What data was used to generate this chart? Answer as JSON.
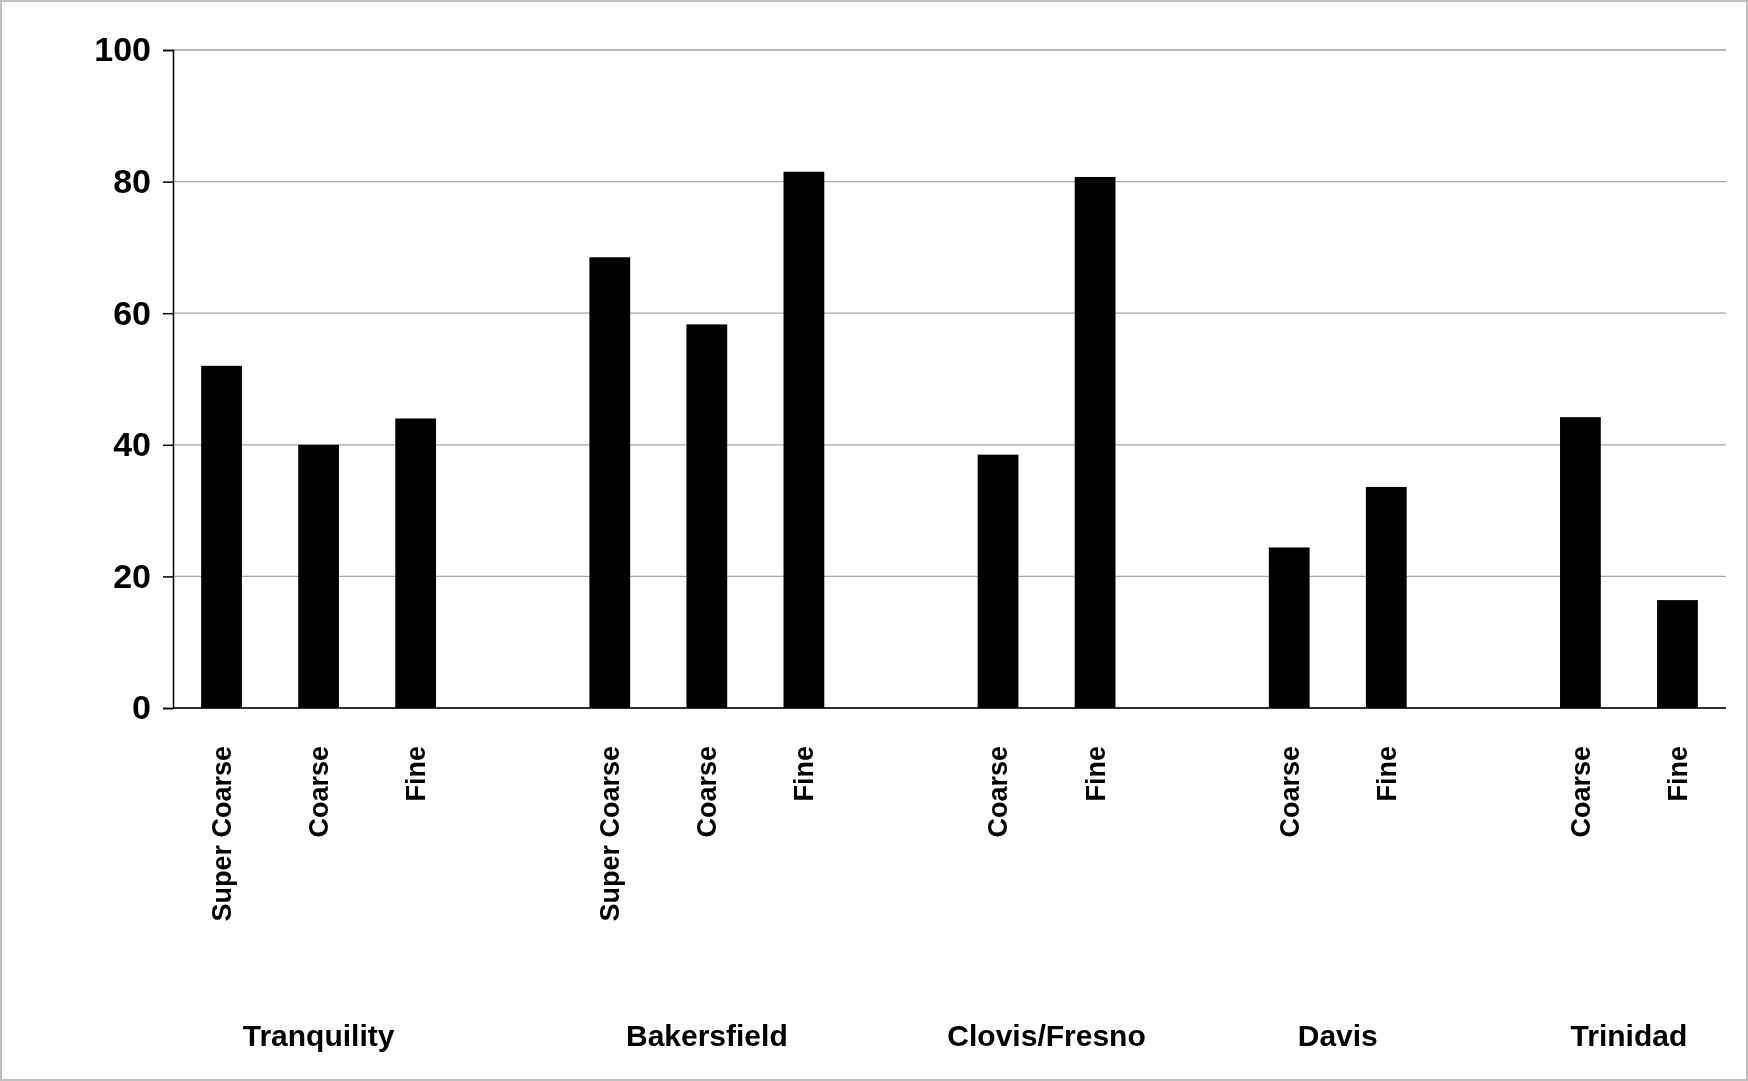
{
  "chart_data": {
    "type": "bar",
    "categories": [
      "Super Coarse",
      "Coarse",
      "Fine",
      null,
      "Super Coarse",
      "Coarse",
      "Fine",
      null,
      "Coarse",
      "Fine",
      null,
      "Coarse",
      "Fine",
      null,
      "Coarse",
      "Fine"
    ],
    "values": [
      52,
      40,
      44,
      null,
      68.5,
      58.3,
      81.5,
      null,
      38.5,
      80.7,
      null,
      24.4,
      33.6,
      null,
      44.2,
      16.4
    ],
    "color": "#000000",
    "ylim": [
      0,
      100
    ],
    "yticks": [
      0,
      20,
      40,
      60,
      80,
      100
    ],
    "grid": "y",
    "annotations": [
      "Tranquility",
      "Bakersfield",
      "Clovis/Fresno",
      "Davis",
      "Trinidad"
    ]
  }
}
